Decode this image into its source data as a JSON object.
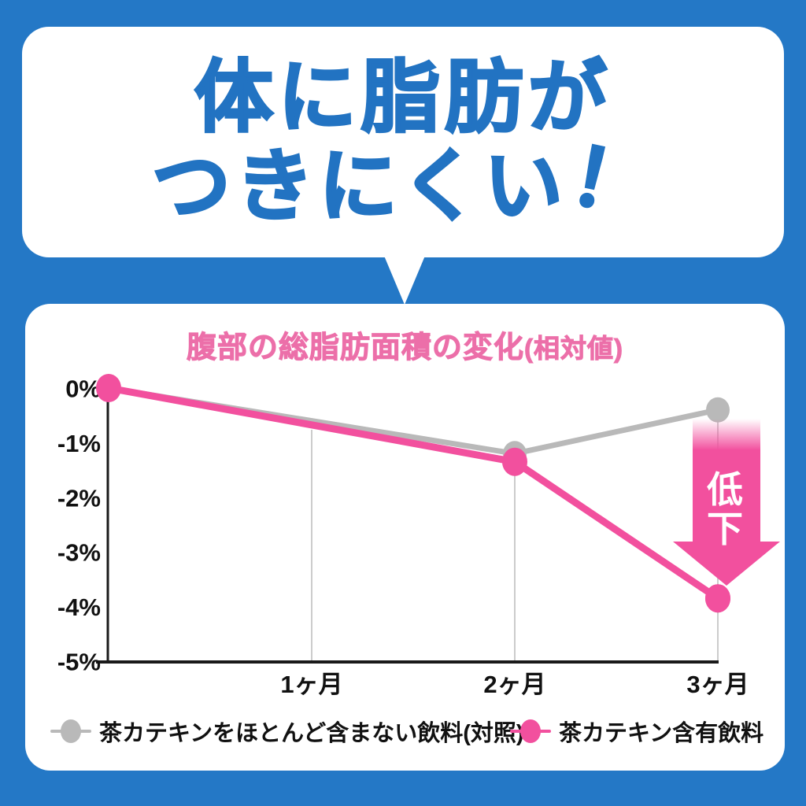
{
  "colors": {
    "background_blue": "#2478c6",
    "headline_blue": "#2273c2",
    "title_pink": "#ec6fa9",
    "series_pink": "#f2509e",
    "series_gray": "#b9b9b9",
    "gridline_gray": "#cccccc",
    "axis_black": "#1a1a1a"
  },
  "speech_bubble": {
    "line1": "体に脂肪が",
    "line2": "つきにくい",
    "exclamation": "！"
  },
  "chart": {
    "title_main": "腹部の総脂肪面積の変化",
    "title_sub": "(相対値)"
  },
  "chart_data": {
    "type": "line",
    "title": "腹部の総脂肪面積の変化(相対値)",
    "x_categories": [
      "1ヶ月",
      "2ヶ月",
      "3ヶ月"
    ],
    "y_tick_labels": [
      "0%",
      "-1%",
      "-2%",
      "-3%",
      "-4%",
      "-5%"
    ],
    "ylim": [
      -5,
      0
    ],
    "xlim_months": [
      0,
      3
    ],
    "grid": "vertical-only",
    "legend_position": "bottom",
    "series": [
      {
        "name": "茶カテキンをほとんど含まない飲料(対照)",
        "color": "#b9b9b9",
        "x_months": [
          0,
          2,
          3
        ],
        "values_pct": [
          0,
          -1.2,
          -0.4
        ]
      },
      {
        "name": "茶カテキン含有飲料",
        "color": "#f2509e",
        "x_months": [
          0,
          2,
          3
        ],
        "values_pct": [
          0,
          -1.35,
          -3.85
        ]
      }
    ],
    "annotation_arrow": {
      "text": "低下",
      "x_month": 3,
      "direction": "down"
    }
  },
  "legend": {
    "items": [
      {
        "label": "茶カテキンをほとんど含まない飲料(対照)",
        "color": "#b9b9b9"
      },
      {
        "label": "茶カテキン含有飲料",
        "color": "#f2509e"
      }
    ]
  }
}
